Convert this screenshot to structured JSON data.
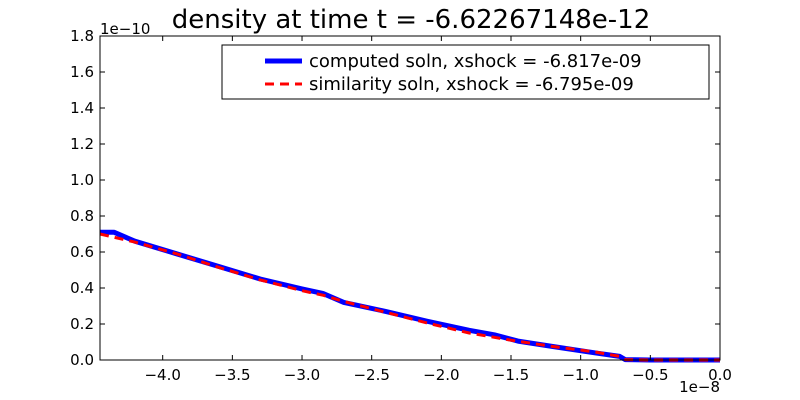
{
  "chart_data": {
    "type": "line",
    "title": "density at time t = -6.62267148e-12",
    "xlabel": "",
    "ylabel": "",
    "x_multiplier_label": "1e−8",
    "y_multiplier_label": "1e−10",
    "xlim": [
      -4.45,
      0.0
    ],
    "ylim": [
      0.0,
      1.8
    ],
    "x_ticks": [
      {
        "value": -4.0,
        "label": "−4.0"
      },
      {
        "value": -3.5,
        "label": "−3.5"
      },
      {
        "value": -3.0,
        "label": "−3.0"
      },
      {
        "value": -2.5,
        "label": "−2.5"
      },
      {
        "value": -2.0,
        "label": "−2.0"
      },
      {
        "value": -1.5,
        "label": "−1.5"
      },
      {
        "value": -1.0,
        "label": "−1.0"
      },
      {
        "value": -0.5,
        "label": "−0.5"
      },
      {
        "value": 0.0,
        "label": "0.0"
      }
    ],
    "y_ticks": [
      {
        "value": 0.0,
        "label": "0.0"
      },
      {
        "value": 0.2,
        "label": "0.2"
      },
      {
        "value": 0.4,
        "label": "0.4"
      },
      {
        "value": 0.6,
        "label": "0.6"
      },
      {
        "value": 0.8,
        "label": "0.8"
      },
      {
        "value": 1.0,
        "label": "1.0"
      },
      {
        "value": 1.2,
        "label": "1.2"
      },
      {
        "value": 1.4,
        "label": "1.4"
      },
      {
        "value": 1.6,
        "label": "1.6"
      },
      {
        "value": 1.8,
        "label": "1.8"
      }
    ],
    "grid": false,
    "legend_position": "upper-right",
    "series": [
      {
        "name": "computed soln, xshock = -6.817e-09",
        "color": "#0000ff",
        "style": "solid",
        "x": [
          -4.45,
          -4.35,
          -4.2,
          -3.9,
          -3.6,
          -3.3,
          -3.0,
          -2.85,
          -2.7,
          -2.4,
          -2.1,
          -1.8,
          -1.62,
          -1.45,
          -1.2,
          -0.9,
          -0.72,
          -0.68,
          -0.5,
          -0.3,
          0.0
        ],
        "y": [
          0.71,
          0.71,
          0.66,
          0.59,
          0.52,
          0.45,
          0.395,
          0.37,
          0.32,
          0.27,
          0.215,
          0.165,
          0.14,
          0.105,
          0.075,
          0.04,
          0.02,
          0.002,
          0.0,
          0.0,
          0.0
        ]
      },
      {
        "name": "similarity soln,  xshock = -6.795e-09",
        "color": "#ff0000",
        "style": "dashed",
        "x": [
          -4.45,
          -4.2,
          -3.9,
          -3.6,
          -3.3,
          -3.0,
          -2.85,
          -2.7,
          -2.4,
          -2.1,
          -1.8,
          -1.5,
          -1.2,
          -0.9,
          -0.72,
          -0.68,
          -0.5,
          -0.3,
          0.0
        ],
        "y": [
          0.7,
          0.655,
          0.59,
          0.515,
          0.445,
          0.385,
          0.36,
          0.325,
          0.265,
          0.205,
          0.15,
          0.11,
          0.075,
          0.045,
          0.02,
          0.002,
          0.0,
          0.0,
          0.0
        ]
      }
    ]
  }
}
